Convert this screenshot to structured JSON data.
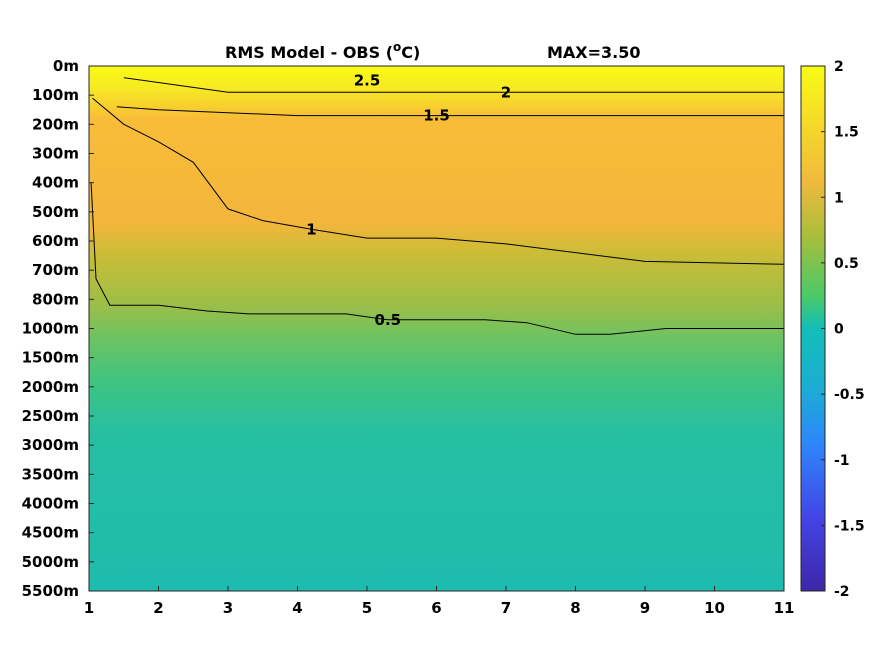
{
  "chart_data": {
    "type": "heatmap",
    "title_prefix": "RMS Model - OBS (",
    "title_sup": "o",
    "title_suffix": "C)",
    "max_label": "MAX=3.50",
    "x_ticks": [
      "1",
      "2",
      "3",
      "4",
      "5",
      "6",
      "7",
      "8",
      "9",
      "10",
      "11"
    ],
    "xlim": [
      1,
      11
    ],
    "y_ticks": [
      "0m",
      "100m",
      "200m",
      "300m",
      "400m",
      "500m",
      "600m",
      "700m",
      "800m",
      "1000m",
      "1500m",
      "2000m",
      "2500m",
      "3000m",
      "3500m",
      "4000m",
      "4500m",
      "5000m",
      "5500m"
    ],
    "colorbar": {
      "ticks": [
        "2",
        "1.5",
        "1",
        "0.5",
        "0",
        "-0.5",
        "-1",
        "-1.5",
        "-2"
      ],
      "range": [
        -2,
        2
      ],
      "colors": [
        "#3e26a8",
        "#4245e6",
        "#2e86fb",
        "#1baed3",
        "#13beb8",
        "#4ac96a",
        "#a4be3d",
        "#f0ba3c",
        "#f5da28",
        "#f9fb15"
      ]
    },
    "field_by_depth": [
      2.1,
      1.85,
      1.55,
      1.35,
      1.3,
      1.2,
      1.0,
      0.85,
      0.7,
      0.55,
      0.48,
      0.42,
      0.38,
      0.33,
      0.3,
      0.32,
      0.36,
      0.34,
      0.2
    ],
    "contours": [
      {
        "level_label": "0.5",
        "depth_index": [
          4.0,
          7.3,
          8.2,
          8.2,
          8.4,
          8.5,
          8.5,
          8.5,
          8.7,
          8.7,
          8.7,
          8.8,
          9.2,
          9.2,
          9.0,
          9.0,
          9.0
        ],
        "x": [
          1.03,
          1.1,
          1.3,
          2.0,
          2.7,
          3.3,
          4.0,
          4.7,
          5.3,
          6.0,
          6.7,
          7.3,
          8.0,
          8.5,
          9.3,
          10.0,
          11.0
        ]
      },
      {
        "level_label": "1",
        "depth_index": [
          1.1,
          2.0,
          2.6,
          3.3,
          4.9,
          5.3,
          5.6,
          5.9,
          5.9,
          6.1,
          6.7,
          6.8
        ],
        "x": [
          1.05,
          1.5,
          2.0,
          2.5,
          3.0,
          3.5,
          4.2,
          5.0,
          6.0,
          7.0,
          9.0,
          11.0
        ]
      },
      {
        "level_label": "1.5",
        "depth_index": [
          1.4,
          1.5,
          1.6,
          1.7,
          1.7,
          1.7,
          1.7,
          1.7
        ],
        "x": [
          1.4,
          2.0,
          3.0,
          4.0,
          6.0,
          8.0,
          10.0,
          11.0
        ]
      },
      {
        "level_label": "2",
        "depth_index": [
          0.4,
          0.9,
          0.9,
          0.9,
          0.9,
          0.9
        ],
        "x": [
          1.5,
          3.0,
          5.0,
          7.0,
          9.0,
          11.0
        ]
      },
      {
        "level_label": "2.5",
        "depth_index": [
          0.5
        ],
        "x": [
          5.0
        ]
      }
    ]
  }
}
